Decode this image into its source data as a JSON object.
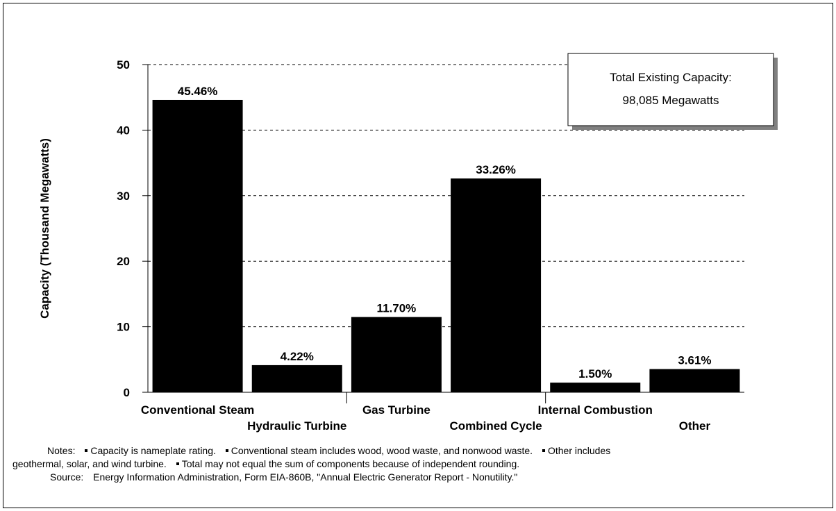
{
  "chart_data": {
    "type": "bar",
    "categories": [
      "Conventional Steam",
      "Hydraulic Turbine",
      "Gas Turbine",
      "Combined Cycle",
      "Internal Combustion",
      "Other"
    ],
    "values": [
      44.6,
      4.14,
      11.48,
      32.62,
      1.47,
      3.54
    ],
    "data_labels": [
      "45.46%",
      "4.22%",
      "11.70%",
      "33.26%",
      "1.50%",
      "3.61%"
    ],
    "ylabel": "Capacity  (Thousand Megawatts)",
    "ylim": [
      0,
      50
    ],
    "yticks": [
      "0",
      "10",
      "20",
      "30",
      "40",
      "50"
    ],
    "grid": "dashed horizontal",
    "bar_color": "#000000"
  },
  "info_box": {
    "line1": "Total Existing Capacity:",
    "line2": "98,085 Megawatts"
  },
  "notes": {
    "label": "Notes:",
    "note1": "Capacity is nameplate rating.",
    "note2": "Conventional steam includes wood, wood waste, and nonwood waste.",
    "note3_part1": "Other includes",
    "note3_part2": "geothermal, solar, and wind turbine.",
    "note4": "Total may not equal the sum of components because of independent rounding.",
    "source_label": "Source:",
    "source_text": "Energy Information Administration, Form EIA-860B, \"Annual Electric Generator Report - Nonutility.\""
  }
}
